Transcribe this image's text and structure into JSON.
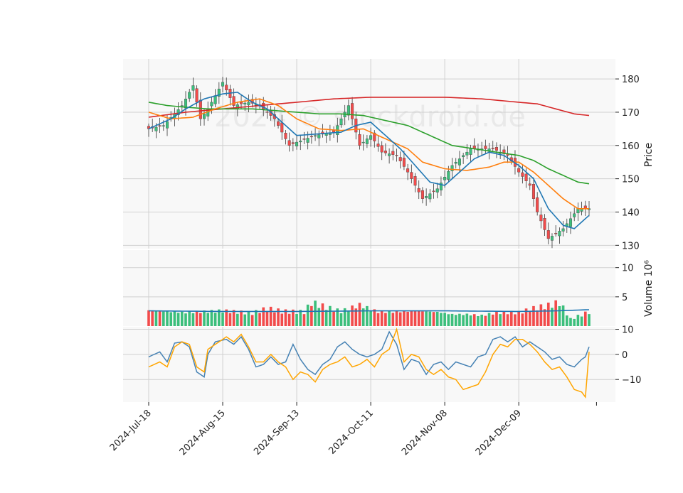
{
  "chart_data": {
    "type": "candlestick",
    "watermark": "2024 © stockdroid.de",
    "x_tick_labels": [
      "2024-Jul-18",
      "2024-Aug-15",
      "2024-Sep-13",
      "2024-Oct-11",
      "2024-Nov-08",
      "2024-Dec-09"
    ],
    "x_tick_index": [
      0,
      20,
      40,
      60,
      80,
      100
    ],
    "price_panel": {
      "ylabel": "Price",
      "ylim": [
        129,
        186
      ],
      "yticks": [
        130,
        140,
        150,
        160,
        170,
        180
      ],
      "grid": true
    },
    "volume_panel": {
      "ylabel": "Volume  10⁶",
      "ylim": [
        0,
        13
      ],
      "yticks": [
        5,
        10
      ],
      "grid": true
    },
    "oscillator_panel": {
      "ylim": [
        -19,
        11
      ],
      "yticks": [
        10,
        0,
        -10
      ],
      "grid": true
    },
    "colors": {
      "up": "#3cbf7c",
      "down": "#f24b4b",
      "sma_short": "#1f77b4",
      "sma_mid": "#ff7f0e",
      "sma_long1": "#2ca02c",
      "sma_long2": "#d62728",
      "vol_avg": "#1f77b4",
      "osc_line1": "#4682b4",
      "osc_line2": "#ffa500",
      "plot_bg": "#f8f8f8",
      "grid": "#d0d0d0"
    },
    "anchors": {
      "close": [
        [
          0,
          165
        ],
        [
          4,
          166
        ],
        [
          9,
          172
        ],
        [
          12,
          178
        ],
        [
          14,
          168
        ],
        [
          16,
          171
        ],
        [
          20,
          179
        ],
        [
          23,
          172
        ],
        [
          27,
          173
        ],
        [
          30,
          172
        ],
        [
          34,
          168
        ],
        [
          38,
          160
        ],
        [
          40,
          161
        ],
        [
          45,
          163
        ],
        [
          50,
          164
        ],
        [
          54,
          172
        ],
        [
          57,
          160
        ],
        [
          60,
          163
        ],
        [
          63,
          158
        ],
        [
          67,
          157
        ],
        [
          70,
          152
        ],
        [
          74,
          144
        ],
        [
          78,
          147
        ],
        [
          82,
          154
        ],
        [
          87,
          159
        ],
        [
          93,
          159
        ],
        [
          97,
          157
        ],
        [
          100,
          152
        ],
        [
          103,
          148
        ],
        [
          105,
          140
        ],
        [
          108,
          132
        ],
        [
          112,
          135
        ],
        [
          116,
          141
        ],
        [
          119,
          141
        ]
      ],
      "sma_short": [
        [
          0,
          165
        ],
        [
          6,
          168
        ],
        [
          10,
          171
        ],
        [
          15,
          174
        ],
        [
          20,
          175.5
        ],
        [
          24,
          176
        ],
        [
          28,
          173
        ],
        [
          32,
          171
        ],
        [
          36,
          167
        ],
        [
          40,
          163
        ],
        [
          46,
          163.5
        ],
        [
          52,
          164
        ],
        [
          56,
          166
        ],
        [
          60,
          167
        ],
        [
          64,
          163
        ],
        [
          68,
          159
        ],
        [
          72,
          154
        ],
        [
          76,
          149
        ],
        [
          80,
          148
        ],
        [
          84,
          152
        ],
        [
          88,
          156
        ],
        [
          92,
          158
        ],
        [
          96,
          157
        ],
        [
          100,
          154
        ],
        [
          104,
          150
        ],
        [
          108,
          141
        ],
        [
          112,
          136
        ],
        [
          115,
          135
        ],
        [
          119,
          139
        ]
      ],
      "sma_mid": [
        [
          0,
          170
        ],
        [
          6,
          168
        ],
        [
          12,
          168.5
        ],
        [
          18,
          171
        ],
        [
          24,
          173
        ],
        [
          30,
          174
        ],
        [
          35,
          172
        ],
        [
          40,
          168
        ],
        [
          46,
          165
        ],
        [
          52,
          164.5
        ],
        [
          58,
          165
        ],
        [
          62,
          163
        ],
        [
          66,
          161
        ],
        [
          70,
          159
        ],
        [
          74,
          155
        ],
        [
          80,
          153
        ],
        [
          86,
          152.5
        ],
        [
          92,
          153.5
        ],
        [
          96,
          155
        ],
        [
          100,
          155
        ],
        [
          104,
          152
        ],
        [
          108,
          148
        ],
        [
          112,
          144
        ],
        [
          116,
          141
        ],
        [
          119,
          141
        ]
      ],
      "sma_long1": [
        [
          0,
          173
        ],
        [
          5,
          172
        ],
        [
          10,
          171.5
        ],
        [
          16,
          171
        ],
        [
          22,
          171
        ],
        [
          28,
          171
        ],
        [
          34,
          170.5
        ],
        [
          40,
          170
        ],
        [
          46,
          169.5
        ],
        [
          52,
          169.5
        ],
        [
          58,
          169
        ],
        [
          64,
          167.5
        ],
        [
          70,
          166
        ],
        [
          76,
          163
        ],
        [
          82,
          160
        ],
        [
          88,
          159
        ],
        [
          94,
          158
        ],
        [
          100,
          157
        ],
        [
          104,
          155.5
        ],
        [
          108,
          153
        ],
        [
          112,
          151
        ],
        [
          116,
          149
        ],
        [
          119,
          148.5
        ]
      ],
      "sma_long2": [
        [
          0,
          168.5
        ],
        [
          10,
          170
        ],
        [
          20,
          171
        ],
        [
          30,
          172
        ],
        [
          40,
          173
        ],
        [
          50,
          174
        ],
        [
          60,
          174.5
        ],
        [
          70,
          174.5
        ],
        [
          80,
          174.5
        ],
        [
          90,
          174
        ],
        [
          100,
          173
        ],
        [
          105,
          172.5
        ],
        [
          110,
          171
        ],
        [
          115,
          169.5
        ],
        [
          119,
          169
        ]
      ],
      "volume": [
        [
          0,
          2.7
        ],
        [
          10,
          2.3
        ],
        [
          20,
          2.6
        ],
        [
          28,
          2.2
        ],
        [
          32,
          3.0
        ],
        [
          36,
          2.5
        ],
        [
          42,
          2.4
        ],
        [
          44,
          4.0
        ],
        [
          48,
          3.2
        ],
        [
          52,
          2.5
        ],
        [
          57,
          3.6
        ],
        [
          62,
          2.4
        ],
        [
          66,
          2.4
        ],
        [
          72,
          2.6
        ],
        [
          78,
          2.4
        ],
        [
          82,
          2.0
        ],
        [
          86,
          2.0
        ],
        [
          90,
          1.8
        ],
        [
          94,
          2.3
        ],
        [
          100,
          2.3
        ],
        [
          104,
          3.0
        ],
        [
          108,
          3.5
        ],
        [
          111,
          4.0
        ],
        [
          114,
          1.2
        ],
        [
          119,
          2.4
        ]
      ],
      "vol_avg": [
        [
          0,
          2.6
        ],
        [
          20,
          2.5
        ],
        [
          40,
          2.5
        ],
        [
          60,
          2.6
        ],
        [
          80,
          2.6
        ],
        [
          100,
          2.5
        ],
        [
          110,
          2.6
        ],
        [
          119,
          2.8
        ]
      ],
      "osc1": [
        [
          0,
          -1
        ],
        [
          3,
          1
        ],
        [
          5,
          -3
        ],
        [
          7,
          4.5
        ],
        [
          9,
          5
        ],
        [
          11,
          3
        ],
        [
          13,
          -7
        ],
        [
          15,
          -9
        ],
        [
          16,
          0
        ],
        [
          18,
          5
        ],
        [
          21,
          6
        ],
        [
          23,
          4
        ],
        [
          25,
          7
        ],
        [
          27,
          2
        ],
        [
          29,
          -5
        ],
        [
          31,
          -4
        ],
        [
          33,
          -1
        ],
        [
          35,
          -4
        ],
        [
          37,
          -3
        ],
        [
          39,
          4
        ],
        [
          41,
          -2
        ],
        [
          43,
          -6
        ],
        [
          45,
          -8
        ],
        [
          47,
          -4
        ],
        [
          49,
          -2
        ],
        [
          51,
          3
        ],
        [
          53,
          5
        ],
        [
          55,
          2
        ],
        [
          57,
          0
        ],
        [
          59,
          -1
        ],
        [
          61,
          0
        ],
        [
          63,
          2
        ],
        [
          65,
          9
        ],
        [
          67,
          4
        ],
        [
          69,
          -6
        ],
        [
          71,
          -2
        ],
        [
          73,
          -3
        ],
        [
          75,
          -8
        ],
        [
          77,
          -4
        ],
        [
          79,
          -3
        ],
        [
          81,
          -6
        ],
        [
          83,
          -3
        ],
        [
          85,
          -4
        ],
        [
          87,
          -5
        ],
        [
          89,
          -1
        ],
        [
          91,
          0
        ],
        [
          93,
          6
        ],
        [
          95,
          7
        ],
        [
          97,
          5
        ],
        [
          99,
          7
        ],
        [
          101,
          3
        ],
        [
          103,
          5
        ],
        [
          105,
          3
        ],
        [
          107,
          1
        ],
        [
          109,
          -2
        ],
        [
          111,
          -1
        ],
        [
          113,
          -4
        ],
        [
          115,
          -5
        ],
        [
          117,
          -2
        ],
        [
          118,
          -1
        ],
        [
          119,
          3
        ]
      ],
      "osc2": [
        [
          0,
          -5
        ],
        [
          3,
          -3
        ],
        [
          5,
          -5
        ],
        [
          7,
          3
        ],
        [
          9,
          5
        ],
        [
          11,
          4
        ],
        [
          13,
          -5
        ],
        [
          15,
          -7
        ],
        [
          16,
          2
        ],
        [
          18,
          4
        ],
        [
          21,
          7
        ],
        [
          23,
          5
        ],
        [
          25,
          8
        ],
        [
          27,
          3
        ],
        [
          29,
          -3
        ],
        [
          31,
          -3
        ],
        [
          33,
          0
        ],
        [
          35,
          -3
        ],
        [
          37,
          -5
        ],
        [
          39,
          -10
        ],
        [
          41,
          -7
        ],
        [
          43,
          -8
        ],
        [
          45,
          -11
        ],
        [
          47,
          -6
        ],
        [
          49,
          -4
        ],
        [
          51,
          -3
        ],
        [
          53,
          -1
        ],
        [
          55,
          -5
        ],
        [
          57,
          -4
        ],
        [
          59,
          -2
        ],
        [
          61,
          -5
        ],
        [
          63,
          0
        ],
        [
          65,
          2
        ],
        [
          67,
          10
        ],
        [
          69,
          -3
        ],
        [
          71,
          0
        ],
        [
          73,
          -1
        ],
        [
          75,
          -6
        ],
        [
          77,
          -8
        ],
        [
          79,
          -6
        ],
        [
          81,
          -9
        ],
        [
          83,
          -10
        ],
        [
          85,
          -14
        ],
        [
          87,
          -13
        ],
        [
          89,
          -12
        ],
        [
          91,
          -7
        ],
        [
          93,
          0
        ],
        [
          95,
          4
        ],
        [
          97,
          3
        ],
        [
          99,
          6
        ],
        [
          101,
          6
        ],
        [
          103,
          4
        ],
        [
          105,
          1
        ],
        [
          107,
          -3
        ],
        [
          109,
          -6
        ],
        [
          111,
          -5
        ],
        [
          113,
          -9
        ],
        [
          115,
          -14
        ],
        [
          117,
          -15
        ],
        [
          118,
          -17
        ],
        [
          119,
          1
        ]
      ]
    }
  }
}
